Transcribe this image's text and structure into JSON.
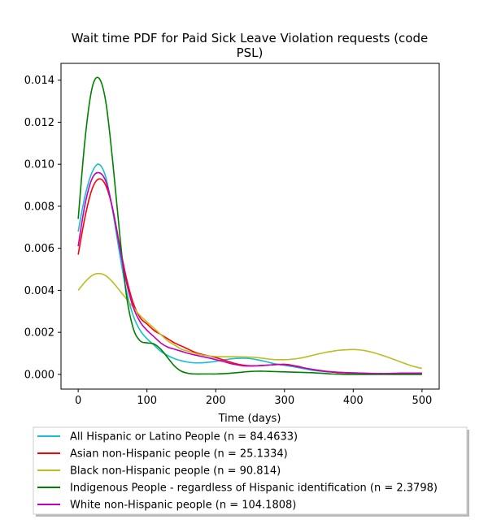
{
  "chart_data": {
    "type": "line",
    "title_line1": "Wait time PDF for Paid Sick Leave Violation  requests (code",
    "title_line2": "PSL)",
    "xlabel": "Time (days)",
    "ylabel": "",
    "xlim": [
      -25,
      525
    ],
    "ylim": [
      -0.0007,
      0.0148
    ],
    "x_ticks": [
      0,
      100,
      200,
      300,
      400,
      500
    ],
    "y_ticks": [
      0.0,
      0.002,
      0.004,
      0.006,
      0.008,
      0.01,
      0.012,
      0.014
    ],
    "y_tick_labels": [
      "0.000",
      "0.002",
      "0.004",
      "0.006",
      "0.008",
      "0.010",
      "0.012",
      "0.014"
    ],
    "grid": false,
    "legend_position": "below",
    "x": [
      0,
      10,
      20,
      30,
      40,
      50,
      60,
      70,
      80,
      90,
      100,
      110,
      120,
      130,
      140,
      150,
      160,
      170,
      180,
      190,
      200,
      210,
      220,
      230,
      240,
      250,
      260,
      270,
      280,
      290,
      300,
      310,
      320,
      330,
      340,
      350,
      360,
      370,
      380,
      390,
      400,
      410,
      420,
      430,
      440,
      450,
      460,
      470,
      480,
      490,
      500
    ],
    "series": [
      {
        "name": "All Hispanic or Latino People (n = 84.4633)",
        "color": "#17becf",
        "values": [
          0.0068,
          0.0085,
          0.0096,
          0.01,
          0.0094,
          0.0078,
          0.0058,
          0.004,
          0.0028,
          0.0021,
          0.0017,
          0.0014,
          0.0011,
          0.0009,
          0.00075,
          0.00065,
          0.00058,
          0.00055,
          0.00055,
          0.00058,
          0.00062,
          0.00068,
          0.00073,
          0.00076,
          0.00077,
          0.00075,
          0.0007,
          0.00063,
          0.00055,
          0.00048,
          0.00043,
          0.00038,
          0.00032,
          0.00026,
          0.0002,
          0.00016,
          0.00013,
          0.00011,
          9e-05,
          8e-05,
          7e-05,
          6e-05,
          5e-05,
          4e-05,
          4e-05,
          4e-05,
          4e-05,
          4e-05,
          4e-05,
          4e-05,
          4e-05
        ]
      },
      {
        "name": "Asian non-Hispanic people (n = 25.1334)",
        "color": "#ff0000",
        "values": [
          0.0057,
          0.0075,
          0.0088,
          0.0093,
          0.009,
          0.0079,
          0.0062,
          0.0046,
          0.0034,
          0.0027,
          0.0024,
          0.0021,
          0.0019,
          0.0017,
          0.0015,
          0.00135,
          0.0012,
          0.00105,
          0.00095,
          0.00088,
          0.0008,
          0.0007,
          0.0006,
          0.0005,
          0.00044,
          0.00041,
          0.00041,
          0.00043,
          0.00045,
          0.00047,
          0.00048,
          0.00044,
          0.00038,
          0.0003,
          0.00024,
          0.00018,
          0.00014,
          0.00011,
          8e-05,
          7e-05,
          6e-05,
          5e-05,
          4e-05,
          3e-05,
          2e-05,
          2e-05,
          2e-05,
          2e-05,
          2e-05,
          2e-05,
          2e-05
        ]
      },
      {
        "name": "Black non-Hispanic people (n = 90.814)",
        "color": "#bcbd22",
        "values": [
          0.004,
          0.0044,
          0.0047,
          0.0048,
          0.0047,
          0.0044,
          0.004,
          0.0036,
          0.0032,
          0.0028,
          0.0025,
          0.0022,
          0.0019,
          0.0016,
          0.0014,
          0.0012,
          0.0011,
          0.001,
          0.00092,
          0.00088,
          0.00085,
          0.00084,
          0.00084,
          0.00084,
          0.00083,
          0.00082,
          0.0008,
          0.00076,
          0.00072,
          0.0007,
          0.0007,
          0.00072,
          0.00076,
          0.00082,
          0.0009,
          0.00098,
          0.00105,
          0.0011,
          0.00115,
          0.00117,
          0.00118,
          0.00116,
          0.00111,
          0.00103,
          0.00093,
          0.00082,
          0.0007,
          0.00058,
          0.00046,
          0.00036,
          0.00028
        ]
      },
      {
        "name": "Indigenous People - regardless of Hispanic identification (n = 2.3798)",
        "color": "#008000",
        "values": [
          0.0074,
          0.0112,
          0.0136,
          0.0141,
          0.013,
          0.0102,
          0.0068,
          0.0038,
          0.0022,
          0.0016,
          0.0015,
          0.00145,
          0.0012,
          0.0008,
          0.0004,
          0.00015,
          5e-05,
          2e-05,
          2e-05,
          2e-05,
          2e-05,
          3e-05,
          5e-05,
          8e-05,
          0.00011,
          0.00014,
          0.00015,
          0.00015,
          0.00014,
          0.00013,
          0.00012,
          0.00011,
          0.0001,
          9e-05,
          8e-05,
          6e-05,
          4e-05,
          2e-05,
          1e-05,
          0.0,
          0.0,
          0.0,
          0.0,
          0.0,
          0.0,
          0.0,
          0.0,
          0.0,
          0.0,
          0.0,
          0.0
        ]
      },
      {
        "name": "White non-Hispanic people (n = 104.1808)",
        "color": "#bf00bf",
        "values": [
          0.0061,
          0.0081,
          0.0093,
          0.0096,
          0.0092,
          0.0079,
          0.0061,
          0.0044,
          0.0032,
          0.0025,
          0.0021,
          0.0018,
          0.0015,
          0.0013,
          0.0012,
          0.0011,
          0.001,
          0.00092,
          0.00085,
          0.00078,
          0.0007,
          0.00062,
          0.00053,
          0.00046,
          0.00041,
          0.0004,
          0.00041,
          0.00043,
          0.00045,
          0.00047,
          0.00046,
          0.00042,
          0.00036,
          0.0003,
          0.00024,
          0.00019,
          0.00015,
          0.00012,
          0.0001,
          8e-05,
          7e-05,
          6e-05,
          5e-05,
          4e-05,
          4e-05,
          4e-05,
          5e-05,
          6e-05,
          6e-05,
          6e-05,
          6e-05
        ]
      }
    ]
  }
}
